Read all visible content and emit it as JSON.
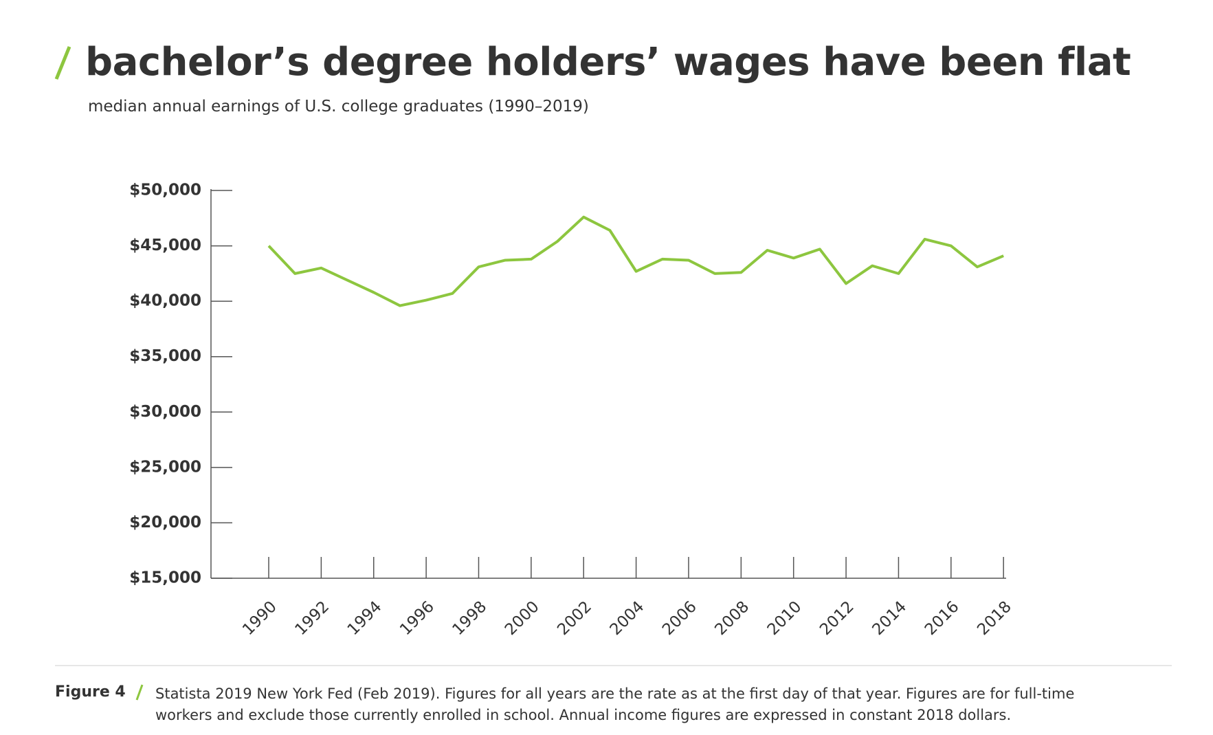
{
  "chart_data": {
    "type": "line",
    "title": "bachelor’s degree holders’ wages have been flat",
    "subtitle": "median annual earnings of U.S. college graduates (1990–2019)",
    "figure_label": "Figure 4",
    "caption": "Statista 2019 New York Fed (Feb 2019). Figures for all years are the rate as at the first day of that year. Figures are for full-time workers and exclude those currently enrolled in school. Annual income figures are expressed in constant 2018 dollars.",
    "x": [
      1990,
      1991,
      1992,
      1993,
      1994,
      1995,
      1996,
      1997,
      1998,
      1999,
      2000,
      2001,
      2002,
      2003,
      2004,
      2005,
      2006,
      2007,
      2008,
      2009,
      2010,
      2011,
      2012,
      2013,
      2014,
      2015,
      2016,
      2017,
      2018
    ],
    "series": [
      {
        "name": "median annual earnings",
        "color": "#8dc63f",
        "values": [
          45000,
          42500,
          43000,
          41900,
          40800,
          39600,
          40100,
          40700,
          43100,
          43700,
          43800,
          45400,
          47600,
          46400,
          42700,
          43800,
          43700,
          42500,
          42600,
          44600,
          43900,
          44700,
          41600,
          43200,
          42500,
          45600,
          45000,
          43100,
          44100
        ]
      }
    ],
    "xlim": [
      1987.8,
      2018.1
    ],
    "xticks": [
      1990,
      1992,
      1994,
      1996,
      1998,
      2000,
      2002,
      2004,
      2006,
      2008,
      2010,
      2012,
      2014,
      2016,
      2018
    ],
    "ylim": [
      15000,
      50000
    ],
    "yticks": [
      {
        "value": 15000,
        "label": "$15,000"
      },
      {
        "value": 20000,
        "label": "$20,000"
      },
      {
        "value": 25000,
        "label": "$25,000"
      },
      {
        "value": 30000,
        "label": "$30,000"
      },
      {
        "value": 35000,
        "label": "$35,000"
      },
      {
        "value": 40000,
        "label": "$40,000"
      },
      {
        "value": 45000,
        "label": "$45,000"
      },
      {
        "value": 50000,
        "label": "$50,000"
      }
    ]
  }
}
